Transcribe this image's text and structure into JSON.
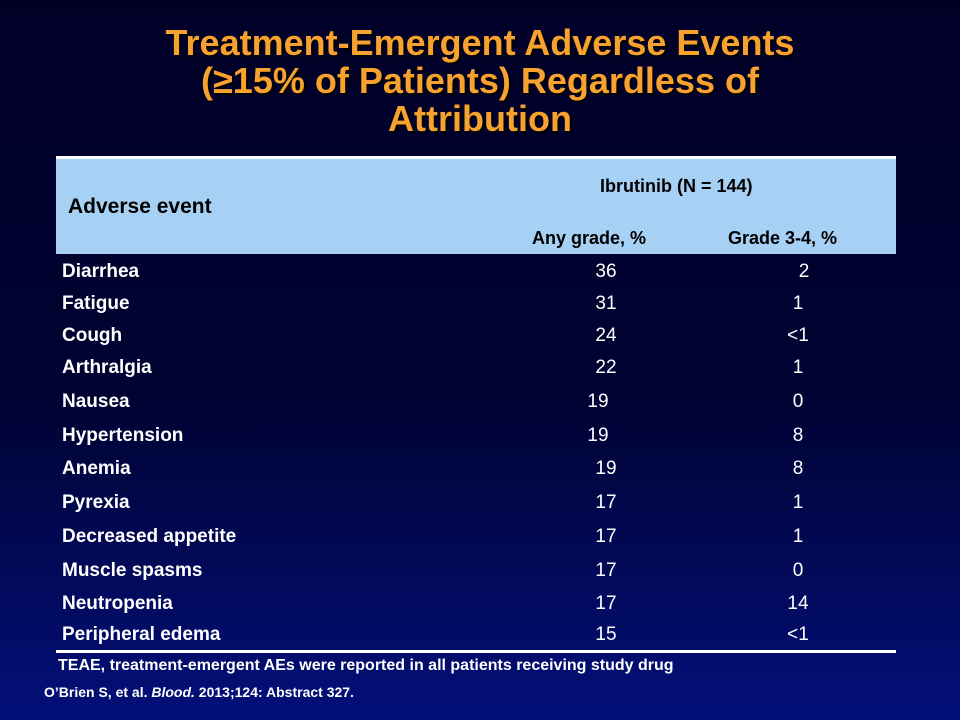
{
  "slide": {
    "title_lines": [
      "Treatment-Emergent Adverse Events",
      "(≥15% of Patients) Regardless of",
      "Attribution"
    ]
  },
  "table": {
    "header": {
      "adverse_event": "Adverse event",
      "group": "Ibrutinib (N = 144)",
      "any_grade": "Any grade, %",
      "grade34": "Grade 3-4, %"
    },
    "rows": [
      {
        "event": "Diarrhea",
        "any_grade": "36",
        "grade34": "2"
      },
      {
        "event": "Fatigue",
        "any_grade": "31",
        "grade34": "1"
      },
      {
        "event": "Cough",
        "any_grade": "24",
        "grade34": "<1"
      },
      {
        "event": "Arthralgia",
        "any_grade": "22",
        "grade34": "1"
      },
      {
        "event": "Nausea",
        "any_grade": "19",
        "grade34": "0"
      },
      {
        "event": "Hypertension",
        "any_grade": "19",
        "grade34": "8"
      },
      {
        "event": "Anemia",
        "any_grade": "19",
        "grade34": "8"
      },
      {
        "event": "Pyrexia",
        "any_grade": "17",
        "grade34": "1"
      },
      {
        "event": "Decreased appetite",
        "any_grade": "17",
        "grade34": "1"
      },
      {
        "event": "Muscle spasms",
        "any_grade": "17",
        "grade34": "0"
      },
      {
        "event": "Neutropenia",
        "any_grade": "17",
        "grade34": "14"
      },
      {
        "event": "Peripheral edema",
        "any_grade": "15",
        "grade34": "<1"
      }
    ]
  },
  "footnote": "TEAE, treatment-emergent AEs were reported in all patients receiving study drug",
  "citation": {
    "prefix": "O’Brien S, et al. ",
    "journal": "Blood.",
    "suffix": " 2013;124: Abstract  327."
  },
  "colors": {
    "title": "#f7a22e",
    "header_bg": "#a7d1f4",
    "background_top": "#000027",
    "background_bottom": "#03107a"
  }
}
